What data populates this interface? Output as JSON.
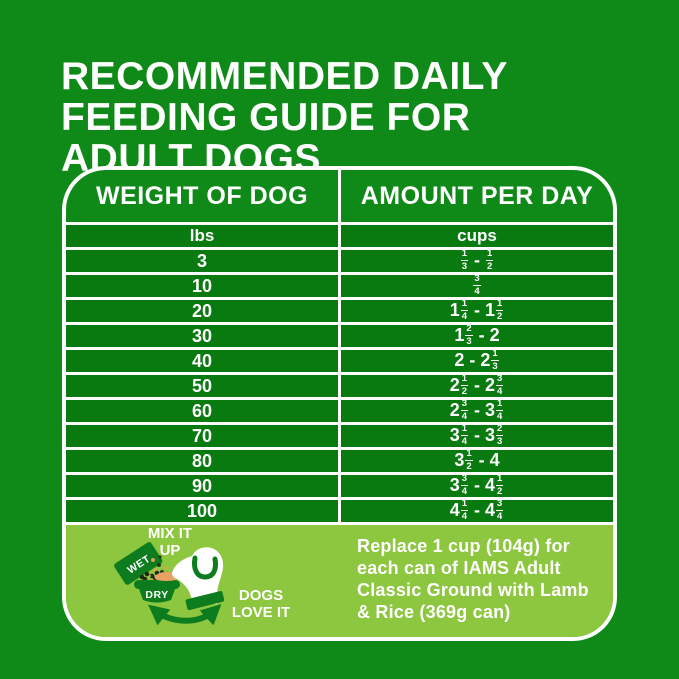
{
  "title": {
    "lines": [
      "RECOMMENDED DAILY",
      "FEEDING GUIDE FOR",
      "ADULT DOGS"
    ]
  },
  "table": {
    "headers": [
      "WEIGHT OF DOG",
      "AMOUNT PER DAY"
    ],
    "units": [
      "lbs",
      "cups"
    ],
    "rows": [
      {
        "weight": "3",
        "amount": "1/3 - 1/2"
      },
      {
        "weight": "10",
        "amount": "3/4"
      },
      {
        "weight": "20",
        "amount": "1 1/4 - 1 1/2"
      },
      {
        "weight": "30",
        "amount": "1 2/3 - 2"
      },
      {
        "weight": "40",
        "amount": "2 - 2 1/3"
      },
      {
        "weight": "50",
        "amount": "2 1/2 - 2 3/4"
      },
      {
        "weight": "60",
        "amount": "2 3/4 - 3 1/4"
      },
      {
        "weight": "70",
        "amount": "3 1/4 - 3 2/3"
      },
      {
        "weight": "80",
        "amount": "3 1/2 - 4"
      },
      {
        "weight": "90",
        "amount": "3 3/4 - 4 1/2"
      },
      {
        "weight": "100",
        "amount": "4 1/4 - 4 3/4"
      }
    ]
  },
  "footer": {
    "mix_lines": [
      "MIX IT",
      "UP"
    ],
    "wet_label": "WET",
    "dry_label": "DRY",
    "dogs_lines": [
      "DOGS",
      "LOVE IT"
    ],
    "note_lines": [
      "Replace 1 cup (104g) for",
      "each can of IAMS Adult",
      "Classic Ground with Lamb",
      "& Rice (369g can)"
    ]
  },
  "colors": {
    "background_green": "#0f8a18",
    "row_green": "#097a10",
    "accent_dark_green": "#0d7c1e",
    "band_light_green": "#8dc63f",
    "text_white": "#ffffff",
    "tongue_tan": "#e8a263"
  }
}
